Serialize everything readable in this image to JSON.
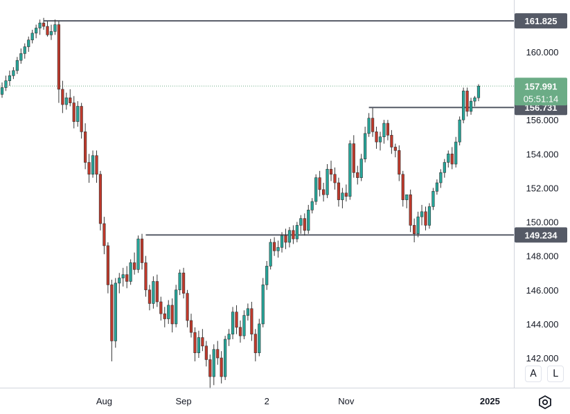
{
  "chart_data": {
    "type": "candlestick",
    "ylim": [
      140.25,
      163.05
    ],
    "y_ticks": [
      "142.000",
      "144.000",
      "146.000",
      "148.000",
      "150.000",
      "152.000",
      "154.000",
      "156.000",
      "160.000"
    ],
    "x_ticks": [
      {
        "label": "Aug",
        "index": 27
      },
      {
        "label": "Sep",
        "index": 48
      },
      {
        "label": "2",
        "index": 70
      },
      {
        "label": "Nov",
        "index": 91
      },
      {
        "label": "2025",
        "index": 129
      }
    ],
    "horizontal_lines": [
      {
        "value": 161.825,
        "label": "161.825",
        "start_index": 11
      },
      {
        "value": 156.731,
        "label": "156.731",
        "start_index": 97
      },
      {
        "value": 149.234,
        "label": "149.234",
        "start_index": 38
      }
    ],
    "current_price": {
      "value": 157.991,
      "label": "157.991",
      "countdown": "05:51:14",
      "color": "#6bac86"
    },
    "colors": {
      "up": "#26a69a",
      "down": "#c0392b",
      "grid_line": "#555a66",
      "level_label_bg": "#555a66"
    },
    "candles": [
      [
        157.5,
        158.2,
        157.3,
        157.9
      ],
      [
        157.9,
        158.6,
        157.7,
        158.3
      ],
      [
        158.3,
        158.9,
        158.0,
        158.6
      ],
      [
        158.6,
        159.1,
        158.4,
        158.9
      ],
      [
        158.9,
        159.7,
        158.7,
        159.5
      ],
      [
        159.5,
        160.2,
        159.3,
        159.9
      ],
      [
        159.9,
        160.5,
        159.6,
        160.3
      ],
      [
        160.3,
        160.9,
        160.0,
        160.7
      ],
      [
        160.7,
        161.3,
        160.5,
        161.1
      ],
      [
        161.1,
        161.6,
        160.8,
        161.4
      ],
      [
        161.4,
        161.9,
        161.0,
        161.7
      ],
      [
        161.7,
        162.0,
        161.3,
        161.5
      ],
      [
        161.5,
        161.8,
        160.9,
        161.0
      ],
      [
        161.0,
        161.6,
        160.7,
        161.2
      ],
      [
        161.2,
        161.9,
        161.0,
        161.6
      ],
      [
        161.6,
        161.8,
        157.0,
        157.8
      ],
      [
        157.8,
        158.3,
        156.4,
        156.9
      ],
      [
        156.9,
        157.6,
        156.6,
        157.3
      ],
      [
        157.3,
        157.8,
        156.8,
        157.0
      ],
      [
        157.0,
        157.4,
        155.5,
        155.9
      ],
      [
        155.9,
        157.1,
        155.6,
        156.8
      ],
      [
        156.8,
        157.0,
        154.9,
        155.3
      ],
      [
        155.3,
        155.8,
        153.1,
        153.5
      ],
      [
        153.5,
        154.0,
        152.3,
        152.8
      ],
      [
        152.8,
        154.2,
        152.6,
        153.9
      ],
      [
        153.9,
        154.2,
        152.3,
        152.8
      ],
      [
        152.8,
        153.0,
        149.5,
        149.9
      ],
      [
        149.9,
        150.3,
        148.1,
        148.6
      ],
      [
        148.6,
        148.8,
        145.8,
        146.3
      ],
      [
        146.3,
        146.6,
        141.8,
        143.0
      ],
      [
        143.0,
        146.7,
        142.6,
        146.4
      ],
      [
        146.4,
        147.0,
        145.8,
        146.7
      ],
      [
        146.7,
        147.3,
        146.2,
        146.9
      ],
      [
        146.9,
        147.4,
        146.1,
        146.5
      ],
      [
        146.5,
        147.8,
        146.3,
        147.6
      ],
      [
        147.6,
        148.2,
        146.9,
        147.2
      ],
      [
        147.2,
        149.2,
        147.0,
        149.0
      ],
      [
        149.0,
        149.3,
        147.2,
        147.6
      ],
      [
        147.6,
        148.0,
        145.6,
        146.0
      ],
      [
        146.0,
        146.3,
        144.8,
        145.2
      ],
      [
        145.2,
        146.8,
        144.9,
        146.5
      ],
      [
        146.5,
        146.9,
        145.0,
        145.3
      ],
      [
        145.3,
        145.6,
        144.2,
        144.6
      ],
      [
        144.6,
        145.0,
        143.8,
        144.3
      ],
      [
        144.3,
        145.4,
        144.0,
        145.1
      ],
      [
        145.1,
        145.5,
        143.5,
        144.0
      ],
      [
        144.0,
        146.3,
        143.8,
        146.0
      ],
      [
        146.0,
        147.2,
        145.7,
        147.0
      ],
      [
        147.0,
        147.3,
        145.5,
        145.8
      ],
      [
        145.8,
        146.0,
        143.8,
        144.2
      ],
      [
        144.2,
        144.6,
        143.2,
        143.5
      ],
      [
        143.5,
        143.8,
        141.8,
        142.3
      ],
      [
        142.3,
        143.6,
        142.0,
        143.2
      ],
      [
        143.2,
        143.7,
        142.4,
        142.7
      ],
      [
        142.7,
        143.0,
        141.5,
        141.9
      ],
      [
        141.9,
        142.2,
        140.2,
        140.9
      ],
      [
        140.9,
        142.8,
        140.4,
        142.5
      ],
      [
        142.5,
        143.0,
        141.6,
        142.0
      ],
      [
        142.0,
        142.4,
        140.5,
        140.9
      ],
      [
        140.9,
        143.3,
        140.7,
        143.1
      ],
      [
        143.1,
        143.7,
        142.7,
        143.4
      ],
      [
        143.4,
        145.0,
        143.1,
        144.7
      ],
      [
        144.7,
        145.1,
        143.4,
        143.8
      ],
      [
        143.8,
        144.2,
        142.9,
        143.3
      ],
      [
        143.3,
        144.8,
        143.1,
        144.5
      ],
      [
        144.5,
        145.2,
        144.2,
        144.9
      ],
      [
        144.9,
        145.3,
        143.0,
        143.4
      ],
      [
        143.4,
        143.7,
        141.8,
        142.3
      ],
      [
        142.3,
        144.3,
        142.1,
        144.0
      ],
      [
        144.0,
        146.7,
        143.8,
        146.3
      ],
      [
        146.3,
        147.7,
        146.0,
        147.4
      ],
      [
        147.4,
        149.0,
        147.2,
        148.8
      ],
      [
        148.8,
        149.1,
        148.0,
        148.3
      ],
      [
        148.3,
        148.9,
        147.9,
        148.5
      ],
      [
        148.5,
        149.4,
        148.2,
        149.2
      ],
      [
        149.2,
        149.6,
        148.4,
        148.8
      ],
      [
        148.8,
        149.7,
        148.5,
        149.5
      ],
      [
        149.5,
        149.8,
        148.7,
        149.0
      ],
      [
        149.0,
        150.0,
        148.8,
        149.8
      ],
      [
        149.8,
        150.4,
        149.3,
        150.2
      ],
      [
        150.2,
        150.5,
        149.2,
        149.5
      ],
      [
        149.5,
        151.0,
        149.3,
        150.7
      ],
      [
        150.7,
        151.4,
        150.5,
        151.2
      ],
      [
        151.2,
        152.8,
        151.0,
        152.6
      ],
      [
        152.6,
        153.0,
        151.5,
        151.9
      ],
      [
        151.9,
        152.3,
        151.2,
        151.6
      ],
      [
        151.6,
        153.4,
        151.4,
        153.1
      ],
      [
        153.1,
        153.6,
        152.4,
        152.8
      ],
      [
        152.8,
        153.2,
        151.9,
        152.3
      ],
      [
        152.3,
        152.6,
        150.9,
        151.3
      ],
      [
        151.3,
        152.0,
        150.8,
        151.7
      ],
      [
        151.7,
        152.2,
        151.2,
        151.5
      ],
      [
        151.5,
        154.8,
        151.3,
        154.6
      ],
      [
        154.6,
        155.1,
        152.6,
        152.9
      ],
      [
        152.9,
        153.3,
        152.2,
        152.6
      ],
      [
        152.6,
        154.0,
        152.4,
        153.7
      ],
      [
        153.7,
        155.6,
        153.5,
        155.2
      ],
      [
        155.2,
        156.4,
        155.0,
        156.1
      ],
      [
        156.1,
        156.7,
        155.0,
        155.3
      ],
      [
        155.3,
        155.6,
        154.3,
        154.7
      ],
      [
        154.7,
        155.3,
        154.2,
        155.0
      ],
      [
        155.0,
        156.0,
        154.6,
        155.8
      ],
      [
        155.8,
        156.0,
        154.8,
        155.1
      ],
      [
        155.1,
        155.4,
        154.0,
        154.4
      ],
      [
        154.4,
        154.6,
        153.8,
        154.2
      ],
      [
        154.2,
        154.5,
        152.4,
        152.8
      ],
      [
        152.8,
        153.0,
        150.9,
        151.3
      ],
      [
        151.3,
        151.6,
        150.8,
        151.6
      ],
      [
        151.6,
        151.9,
        149.4,
        149.8
      ],
      [
        149.8,
        150.2,
        148.8,
        149.3
      ],
      [
        149.3,
        150.6,
        149.1,
        150.3
      ],
      [
        150.3,
        151.0,
        149.8,
        150.6
      ],
      [
        150.6,
        150.9,
        149.5,
        149.8
      ],
      [
        149.8,
        151.1,
        149.6,
        150.9
      ],
      [
        150.9,
        152.0,
        150.7,
        151.8
      ],
      [
        151.8,
        152.5,
        151.6,
        152.3
      ],
      [
        152.3,
        153.1,
        152.0,
        152.9
      ],
      [
        152.9,
        153.7,
        152.6,
        153.5
      ],
      [
        153.5,
        154.2,
        153.2,
        154.0
      ],
      [
        154.0,
        154.4,
        153.1,
        153.4
      ],
      [
        153.4,
        155.0,
        153.2,
        154.7
      ],
      [
        154.7,
        156.2,
        154.5,
        156.0
      ],
      [
        156.0,
        157.9,
        155.8,
        157.7
      ],
      [
        157.7,
        157.9,
        156.2,
        156.5
      ],
      [
        156.5,
        157.3,
        156.3,
        157.1
      ],
      [
        157.1,
        157.4,
        156.8,
        157.3
      ],
      [
        157.3,
        158.1,
        157.1,
        157.991
      ]
    ]
  }
}
